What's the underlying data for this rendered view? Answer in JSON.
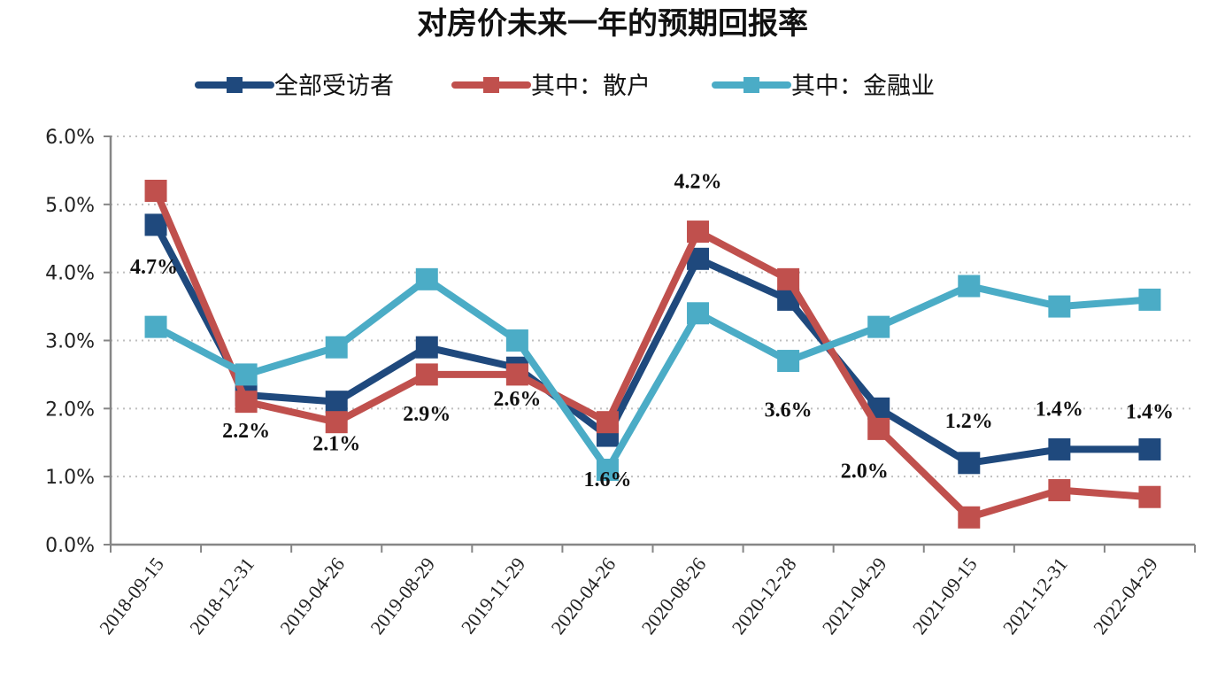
{
  "chart_data": {
    "type": "line",
    "title": "对房价未来一年的预期回报率",
    "xlabel": "",
    "ylabel": "",
    "ylim": [
      0,
      6
    ],
    "yticks": [
      "0.0%",
      "1.0%",
      "2.0%",
      "3.0%",
      "4.0%",
      "5.0%",
      "6.0%"
    ],
    "grid": "horizontal-dotted",
    "legend_position": "top",
    "categories": [
      "2018-09-15",
      "2018-12-31",
      "2019-04-26",
      "2019-08-29",
      "2019-11-29",
      "2020-04-26",
      "2020-08-26",
      "2020-12-28",
      "2021-04-29",
      "2021-09-15",
      "2021-12-31",
      "2022-04-29"
    ],
    "series": [
      {
        "name": "全部受访者",
        "color": "#1F497D",
        "values": [
          4.7,
          2.2,
          2.1,
          2.9,
          2.6,
          1.6,
          4.2,
          3.6,
          2.0,
          1.2,
          1.4,
          1.4
        ],
        "data_labels": [
          "4.7%",
          "2.2%",
          "2.1%",
          "2.9%",
          "2.6%",
          "1.6%",
          "4.2%",
          "3.6%",
          "2.0%",
          "1.2%",
          "1.4%",
          "1.4%"
        ]
      },
      {
        "name": "其中：散户",
        "color": "#C0504D",
        "values": [
          5.2,
          2.1,
          1.8,
          2.5,
          2.5,
          1.8,
          4.6,
          3.9,
          1.7,
          0.4,
          0.8,
          0.7
        ]
      },
      {
        "name": "其中：金融业",
        "color": "#4BACC6",
        "values": [
          3.2,
          2.5,
          2.9,
          3.9,
          3.0,
          1.1,
          3.4,
          2.7,
          3.2,
          3.8,
          3.5,
          3.6
        ]
      }
    ]
  }
}
